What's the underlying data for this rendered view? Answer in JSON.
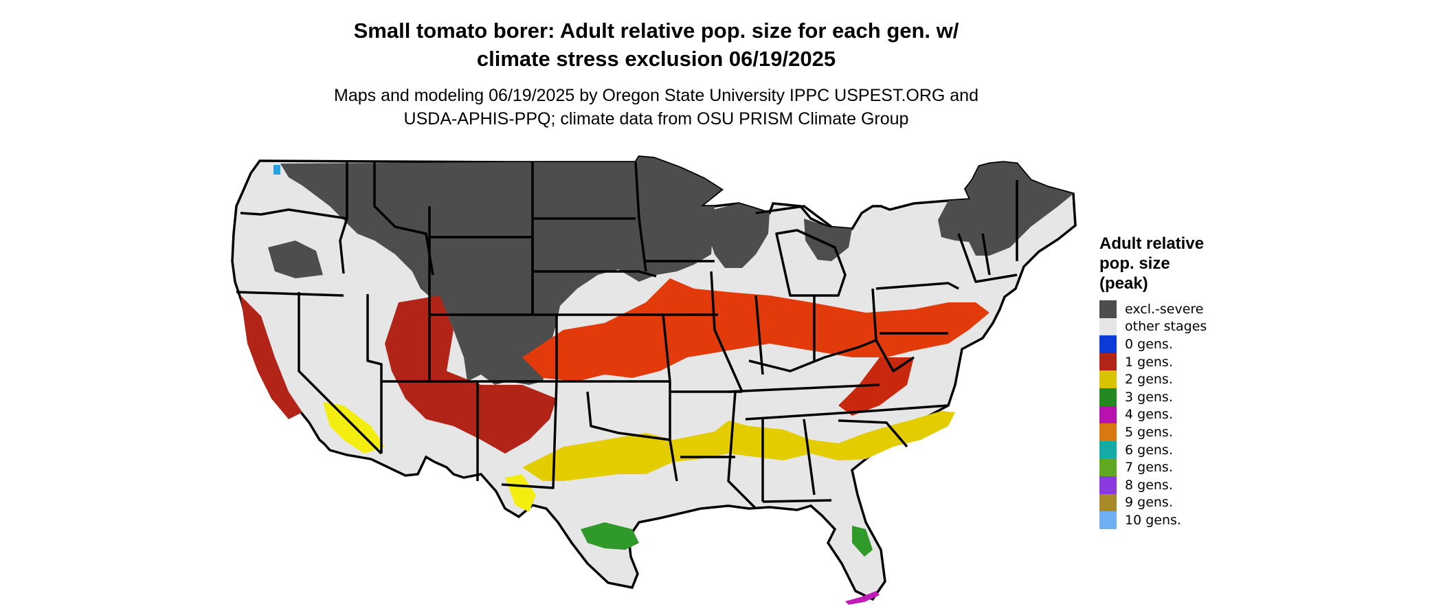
{
  "title": {
    "line1": "Small tomato borer: Adult relative pop. size for each gen. w/",
    "line2": "climate stress exclusion 06/19/2025"
  },
  "subtitle": {
    "line1": "Maps and modeling 06/19/2025 by Oregon State University IPPC USPEST.ORG and",
    "line2": "USDA-APHIS-PPQ; climate data from OSU PRISM Climate Group"
  },
  "legend": {
    "title_lines": [
      "Adult relative",
      "pop. size",
      "(peak)"
    ],
    "items": [
      {
        "label": "excl.-severe",
        "color": "#4d4d4d"
      },
      {
        "label": "other stages",
        "color": "#e6e6e6"
      },
      {
        "label": "0 gens.",
        "color": "#0a3ad8"
      },
      {
        "label": "1 gens.",
        "color": "#b22418"
      },
      {
        "label": "2 gens.",
        "color": "#d8c300"
      },
      {
        "label": "3 gens.",
        "color": "#238a22"
      },
      {
        "label": "4 gens.",
        "color": "#b712b0"
      },
      {
        "label": "5 gens.",
        "color": "#d9780e"
      },
      {
        "label": "6 gens.",
        "color": "#14aaa6"
      },
      {
        "label": "7 gens.",
        "color": "#5fa81f"
      },
      {
        "label": "8 gens.",
        "color": "#8a3ae0"
      },
      {
        "label": "9 gens.",
        "color": "#a88a28"
      },
      {
        "label": "10 gens.",
        "color": "#6fb0f2"
      }
    ]
  },
  "map_colors": {
    "background_land": "#e6e6e6",
    "excluded": "#4d4d4d",
    "one_gen_red": "#e23a0a",
    "one_gen_dark": "#b22418",
    "two_gen_yellow": "#e3cc00",
    "bright_yellow": "#f4ee10",
    "three_gen_green": "#2f9a2a",
    "four_gen_magenta": "#c21cb8",
    "zero_gen_blue": "#2aa0e0",
    "state_border": "#000000"
  }
}
